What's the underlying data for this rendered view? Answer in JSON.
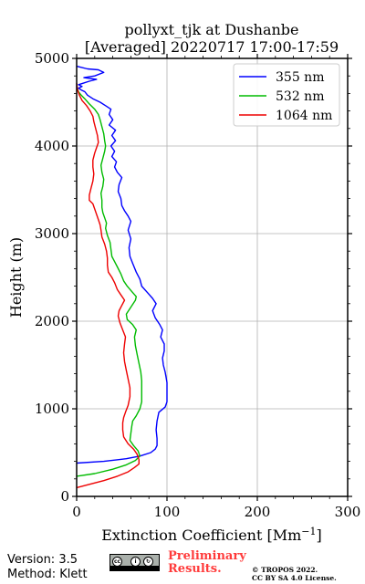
{
  "chart_data": {
    "type": "line",
    "title": [
      "pollyxt_tjk at Dushanbe",
      "[Averaged] 20220717 17:00-17:59"
    ],
    "xlabel": "Extinction Coefficient [Mm",
    "xlabel_sup": "−1",
    "xlabel_close": "]",
    "ylabel": "Height (m)",
    "xlim": [
      0,
      300
    ],
    "ylim": [
      0,
      5000
    ],
    "xticks": [
      0,
      100,
      200,
      300
    ],
    "yticks": [
      0,
      1000,
      2000,
      3000,
      4000,
      5000
    ],
    "grid": true,
    "legend_position": "top-right",
    "series": [
      {
        "name": "355 nm",
        "color": "#0000ff",
        "points": [
          [
            0,
            380
          ],
          [
            30,
            400
          ],
          [
            55,
            430
          ],
          [
            70,
            460
          ],
          [
            82,
            500
          ],
          [
            87,
            540
          ],
          [
            89,
            580
          ],
          [
            89,
            660
          ],
          [
            88,
            760
          ],
          [
            89,
            860
          ],
          [
            91,
            960
          ],
          [
            98,
            1020
          ],
          [
            100,
            1080
          ],
          [
            100,
            1160
          ],
          [
            100,
            1240
          ],
          [
            100,
            1300
          ],
          [
            99,
            1360
          ],
          [
            98,
            1420
          ],
          [
            96,
            1500
          ],
          [
            95,
            1580
          ],
          [
            97,
            1660
          ],
          [
            97,
            1740
          ],
          [
            93,
            1820
          ],
          [
            95,
            1900
          ],
          [
            92,
            1960
          ],
          [
            87,
            2040
          ],
          [
            84,
            2120
          ],
          [
            88,
            2200
          ],
          [
            84,
            2260
          ],
          [
            79,
            2320
          ],
          [
            72,
            2400
          ],
          [
            70,
            2480
          ],
          [
            66,
            2560
          ],
          [
            62,
            2660
          ],
          [
            59,
            2740
          ],
          [
            58,
            2840
          ],
          [
            60,
            2940
          ],
          [
            57,
            3040
          ],
          [
            60,
            3140
          ],
          [
            57,
            3200
          ],
          [
            53,
            3260
          ],
          [
            50,
            3320
          ],
          [
            49,
            3400
          ],
          [
            46,
            3480
          ],
          [
            47,
            3560
          ],
          [
            50,
            3640
          ],
          [
            45,
            3700
          ],
          [
            42,
            3760
          ],
          [
            44,
            3820
          ],
          [
            39,
            3880
          ],
          [
            42,
            3940
          ],
          [
            38,
            4000
          ],
          [
            43,
            4060
          ],
          [
            39,
            4120
          ],
          [
            43,
            4180
          ],
          [
            36,
            4240
          ],
          [
            40,
            4300
          ],
          [
            36,
            4360
          ],
          [
            38,
            4420
          ],
          [
            32,
            4460
          ],
          [
            26,
            4500
          ],
          [
            18,
            4540
          ],
          [
            12,
            4580
          ],
          [
            9,
            4620
          ],
          [
            5,
            4640
          ],
          [
            2,
            4660
          ],
          [
            6,
            4680
          ],
          [
            2,
            4700
          ],
          [
            8,
            4720
          ],
          [
            14,
            4740
          ],
          [
            22,
            4760
          ],
          [
            8,
            4780
          ],
          [
            20,
            4800
          ],
          [
            30,
            4840
          ],
          [
            24,
            4870
          ],
          [
            12,
            4880
          ],
          [
            4,
            4900
          ],
          [
            0,
            4910
          ]
        ]
      },
      {
        "name": "532 nm",
        "color": "#00bb00",
        "points": [
          [
            0,
            230
          ],
          [
            20,
            260
          ],
          [
            40,
            310
          ],
          [
            55,
            360
          ],
          [
            65,
            410
          ],
          [
            70,
            460
          ],
          [
            68,
            520
          ],
          [
            63,
            580
          ],
          [
            59,
            640
          ],
          [
            60,
            720
          ],
          [
            61,
            800
          ],
          [
            62,
            860
          ],
          [
            66,
            920
          ],
          [
            70,
            1000
          ],
          [
            72,
            1080
          ],
          [
            72,
            1160
          ],
          [
            72,
            1240
          ],
          [
            72,
            1320
          ],
          [
            71,
            1420
          ],
          [
            69,
            1520
          ],
          [
            67,
            1620
          ],
          [
            65,
            1720
          ],
          [
            64,
            1820
          ],
          [
            66,
            1900
          ],
          [
            62,
            1960
          ],
          [
            56,
            2020
          ],
          [
            55,
            2080
          ],
          [
            60,
            2160
          ],
          [
            65,
            2240
          ],
          [
            66,
            2280
          ],
          [
            61,
            2340
          ],
          [
            56,
            2400
          ],
          [
            52,
            2460
          ],
          [
            49,
            2540
          ],
          [
            45,
            2620
          ],
          [
            42,
            2680
          ],
          [
            39,
            2740
          ],
          [
            38,
            2820
          ],
          [
            37,
            2900
          ],
          [
            34,
            2980
          ],
          [
            32,
            3060
          ],
          [
            33,
            3120
          ],
          [
            31,
            3180
          ],
          [
            29,
            3240
          ],
          [
            28,
            3300
          ],
          [
            28,
            3380
          ],
          [
            27,
            3460
          ],
          [
            29,
            3540
          ],
          [
            30,
            3620
          ],
          [
            28,
            3700
          ],
          [
            27,
            3780
          ],
          [
            29,
            3860
          ],
          [
            31,
            3940
          ],
          [
            32,
            4000
          ],
          [
            31,
            4060
          ],
          [
            30,
            4140
          ],
          [
            28,
            4220
          ],
          [
            26,
            4300
          ],
          [
            24,
            4360
          ],
          [
            20,
            4420
          ],
          [
            14,
            4480
          ],
          [
            9,
            4540
          ],
          [
            5,
            4580
          ],
          [
            2,
            4620
          ],
          [
            0,
            4680
          ]
        ]
      },
      {
        "name": "1064 nm",
        "color": "#ee0000",
        "points": [
          [
            0,
            100
          ],
          [
            15,
            140
          ],
          [
            30,
            180
          ],
          [
            45,
            230
          ],
          [
            57,
            280
          ],
          [
            64,
            330
          ],
          [
            69,
            370
          ],
          [
            69,
            420
          ],
          [
            67,
            480
          ],
          [
            63,
            540
          ],
          [
            57,
            600
          ],
          [
            52,
            680
          ],
          [
            51,
            760
          ],
          [
            51,
            840
          ],
          [
            52,
            900
          ],
          [
            54,
            960
          ],
          [
            57,
            1040
          ],
          [
            59,
            1140
          ],
          [
            59,
            1240
          ],
          [
            57,
            1340
          ],
          [
            55,
            1440
          ],
          [
            53,
            1540
          ],
          [
            52,
            1640
          ],
          [
            53,
            1740
          ],
          [
            54,
            1820
          ],
          [
            51,
            1900
          ],
          [
            48,
            1980
          ],
          [
            46,
            2060
          ],
          [
            47,
            2120
          ],
          [
            50,
            2180
          ],
          [
            53,
            2240
          ],
          [
            49,
            2300
          ],
          [
            45,
            2360
          ],
          [
            42,
            2440
          ],
          [
            39,
            2500
          ],
          [
            35,
            2560
          ],
          [
            34,
            2640
          ],
          [
            34,
            2720
          ],
          [
            33,
            2800
          ],
          [
            31,
            2880
          ],
          [
            28,
            2960
          ],
          [
            27,
            3040
          ],
          [
            26,
            3100
          ],
          [
            24,
            3160
          ],
          [
            22,
            3220
          ],
          [
            20,
            3280
          ],
          [
            18,
            3340
          ],
          [
            14,
            3380
          ],
          [
            14,
            3440
          ],
          [
            16,
            3520
          ],
          [
            18,
            3600
          ],
          [
            19,
            3680
          ],
          [
            18,
            3760
          ],
          [
            18,
            3840
          ],
          [
            20,
            3920
          ],
          [
            22,
            3980
          ],
          [
            24,
            4040
          ],
          [
            23,
            4120
          ],
          [
            21,
            4200
          ],
          [
            19,
            4280
          ],
          [
            18,
            4340
          ],
          [
            15,
            4400
          ],
          [
            11,
            4460
          ],
          [
            6,
            4520
          ],
          [
            3,
            4580
          ],
          [
            1,
            4640
          ],
          [
            0,
            4720
          ]
        ]
      }
    ]
  },
  "footer": {
    "version": "Version: 3.5",
    "method": "Method: Klett",
    "preliminary_line1": "Preliminary",
    "preliminary_line2": "Results.",
    "copyright_line1": "© TROPOS 2022.",
    "copyright_line2": "CC BY SA 4.0 License.",
    "license_badge": {
      "cc": "cc",
      "by": "BY",
      "sa": "SA"
    }
  }
}
